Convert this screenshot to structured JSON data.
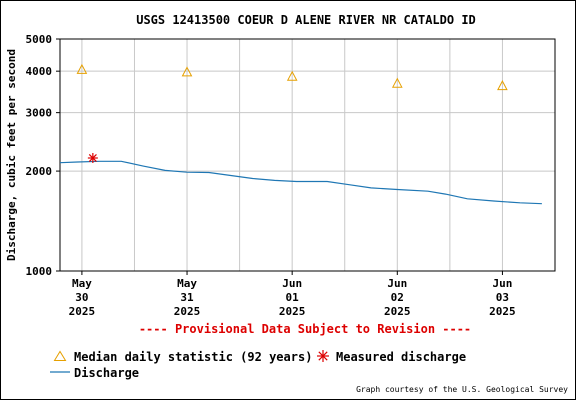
{
  "chart_data": {
    "type": "line",
    "title": "USGS 12413500 COEUR D ALENE RIVER NR CATALDO ID",
    "ylabel": "Discharge, cubic feet per second",
    "xlabel": "",
    "y_scale": "log",
    "ylim": [
      1000,
      5000
    ],
    "y_ticks": [
      {
        "value": 1000,
        "label": "1000"
      },
      {
        "value": 2000,
        "label": "2000"
      },
      {
        "value": 3000,
        "label": "3000"
      },
      {
        "value": 4000,
        "label": "4000"
      },
      {
        "value": 5000,
        "label": "5000"
      }
    ],
    "xlim": [
      "2025-05-29T19:00",
      "2025-06-03T12:00"
    ],
    "x_ticks": [
      {
        "x": "2025-05-30T00:00",
        "month": "May",
        "day": "30",
        "year": "2025"
      },
      {
        "x": "2025-05-31T00:00",
        "month": "May",
        "day": "31",
        "year": "2025"
      },
      {
        "x": "2025-06-01T00:00",
        "month": "Jun",
        "day": "01",
        "year": "2025"
      },
      {
        "x": "2025-06-02T00:00",
        "month": "Jun",
        "day": "02",
        "year": "2025"
      },
      {
        "x": "2025-06-03T00:00",
        "month": "Jun",
        "day": "03",
        "year": "2025"
      }
    ],
    "x_gridlines": [
      "2025-05-30T12:00",
      "2025-05-31T12:00",
      "2025-06-01T12:00",
      "2025-06-02T12:00"
    ],
    "grid": true,
    "series": [
      {
        "name": "Discharge",
        "kind": "line",
        "color": "#1f77b4",
        "points": [
          {
            "x": "2025-05-29T19:00",
            "y": 2120
          },
          {
            "x": "2025-05-29T23:00",
            "y": 2130
          },
          {
            "x": "2025-05-30T04:00",
            "y": 2140
          },
          {
            "x": "2025-05-30T09:00",
            "y": 2140
          },
          {
            "x": "2025-05-30T14:00",
            "y": 2070
          },
          {
            "x": "2025-05-30T19:00",
            "y": 2010
          },
          {
            "x": "2025-05-31T00:00",
            "y": 1985
          },
          {
            "x": "2025-05-31T05:00",
            "y": 1980
          },
          {
            "x": "2025-05-31T10:00",
            "y": 1940
          },
          {
            "x": "2025-05-31T15:00",
            "y": 1900
          },
          {
            "x": "2025-05-31T20:00",
            "y": 1875
          },
          {
            "x": "2025-06-01T01:00",
            "y": 1860
          },
          {
            "x": "2025-06-01T08:00",
            "y": 1860
          },
          {
            "x": "2025-06-01T13:00",
            "y": 1820
          },
          {
            "x": "2025-06-01T18:00",
            "y": 1780
          },
          {
            "x": "2025-06-02T00:00",
            "y": 1760
          },
          {
            "x": "2025-06-02T07:00",
            "y": 1740
          },
          {
            "x": "2025-06-02T11:00",
            "y": 1705
          },
          {
            "x": "2025-06-02T16:00",
            "y": 1650
          },
          {
            "x": "2025-06-02T22:00",
            "y": 1625
          },
          {
            "x": "2025-06-03T04:00",
            "y": 1605
          },
          {
            "x": "2025-06-03T09:00",
            "y": 1595
          }
        ]
      },
      {
        "name": "Median daily statistic (92 years)",
        "kind": "marker",
        "marker": "triangle",
        "color": "#e6a000",
        "points": [
          {
            "x": "2025-05-30T00:00",
            "y": 4050
          },
          {
            "x": "2025-05-31T00:00",
            "y": 3980
          },
          {
            "x": "2025-06-01T00:00",
            "y": 3860
          },
          {
            "x": "2025-06-02T00:00",
            "y": 3680
          },
          {
            "x": "2025-06-03T00:00",
            "y": 3620
          }
        ]
      },
      {
        "name": "Measured discharge",
        "kind": "marker",
        "marker": "asterisk",
        "color": "#dd0000",
        "points": [
          {
            "x": "2025-05-30T02:30",
            "y": 2190
          }
        ]
      }
    ],
    "annotation": "---- Provisional Data Subject to Revision ----",
    "annotation_color": "#dd0000",
    "legend_position": "bottom-left",
    "credit": "Graph courtesy of the U.S. Geological Survey"
  }
}
